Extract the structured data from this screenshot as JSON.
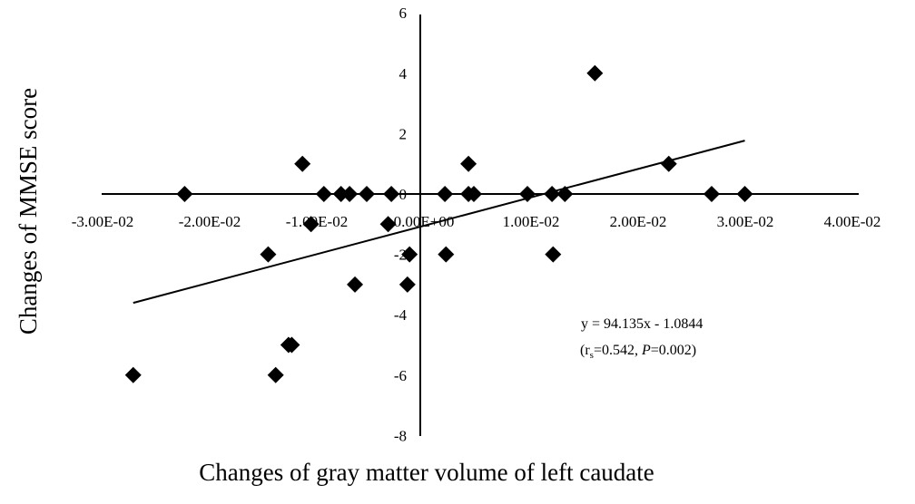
{
  "chart_data": {
    "type": "scatter",
    "xlabel": "Changes of gray matter volume of left caudate",
    "ylabel": "Changes of MMSE score",
    "xlim": [
      -0.03,
      0.04
    ],
    "ylim": [
      -8,
      6
    ],
    "x_ticks": [
      -0.03,
      -0.02,
      -0.01,
      0,
      0.01,
      0.02,
      0.03,
      0.04
    ],
    "x_tick_labels": [
      "-3.00E-02",
      "-2.00E-02",
      "-1.00E-02",
      "0.00E+00",
      "1.00E-02",
      "2.00E-02",
      "3.00E-02",
      "4.00E-02"
    ],
    "y_ticks": [
      -8,
      -6,
      -4,
      -2,
      0,
      2,
      4,
      6
    ],
    "y_tick_labels": [
      "-8",
      "-6",
      "-4",
      "-2",
      "0",
      "2",
      "4",
      "6"
    ],
    "grid": false,
    "marker": "diamond",
    "marker_color": "#000000",
    "points": [
      {
        "x": -0.022,
        "y": 0
      },
      {
        "x": -0.011,
        "y": 1
      },
      {
        "x": -0.009,
        "y": 0
      },
      {
        "x": -0.0074,
        "y": 0
      },
      {
        "x": -0.0066,
        "y": 0
      },
      {
        "x": -0.005,
        "y": 0
      },
      {
        "x": -0.0027,
        "y": 0
      },
      {
        "x": 0.0023,
        "y": 0
      },
      {
        "x": 0.0045,
        "y": 1
      },
      {
        "x": 0.0045,
        "y": 0
      },
      {
        "x": 0.005,
        "y": 0
      },
      {
        "x": 0.01,
        "y": 0
      },
      {
        "x": 0.0123,
        "y": 0
      },
      {
        "x": 0.0135,
        "y": 0
      },
      {
        "x": 0.0163,
        "y": 4
      },
      {
        "x": 0.0232,
        "y": 1
      },
      {
        "x": 0.0272,
        "y": 0
      },
      {
        "x": 0.0303,
        "y": 0
      },
      {
        "x": -0.0268,
        "y": -6
      },
      {
        "x": -0.0135,
        "y": -6
      },
      {
        "x": -0.0142,
        "y": -2
      },
      {
        "x": -0.012,
        "y": -5
      },
      {
        "x": -0.0123,
        "y": -5
      },
      {
        "x": -0.0102,
        "y": -1
      },
      {
        "x": -0.0061,
        "y": -3
      },
      {
        "x": -0.003,
        "y": -1
      },
      {
        "x": -0.001,
        "y": -2
      },
      {
        "x": -0.0012,
        "y": -3
      },
      {
        "x": 0.0024,
        "y": -2
      },
      {
        "x": 0.0124,
        "y": -2
      }
    ],
    "trendline": {
      "slope": 94.135,
      "intercept": -1.0844,
      "x_range": [
        -0.0268,
        0.0303
      ],
      "equation_label": "y = 94.135x - 1.0844"
    },
    "stats": {
      "open_paren": "(",
      "r_symbol": "r",
      "r_subscript": "s",
      "r_value": "=0.542, ",
      "p_symbol": "P",
      "p_value": "=0.002)"
    }
  }
}
